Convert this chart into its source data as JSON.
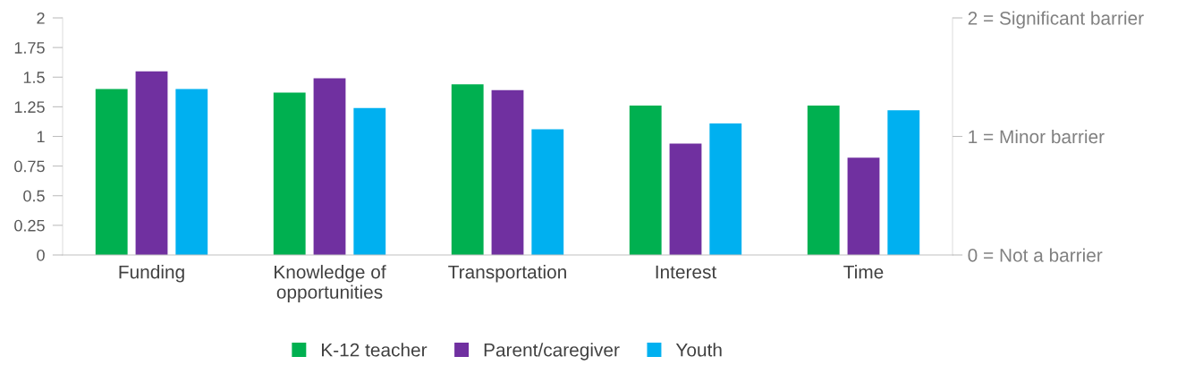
{
  "chart_data": {
    "type": "bar",
    "categories": [
      "Funding",
      "Knowledge of\nopportunities",
      "Transportation",
      "Interest",
      "Time"
    ],
    "series": [
      {
        "name": "K-12 teacher",
        "color": "#00b050",
        "values": [
          1.4,
          1.37,
          1.44,
          1.26,
          1.26
        ]
      },
      {
        "name": "Parent/caregiver",
        "color": "#7030a0",
        "values": [
          1.55,
          1.49,
          1.39,
          0.94,
          0.82
        ]
      },
      {
        "name": "Youth",
        "color": "#00b0f0",
        "values": [
          1.4,
          1.24,
          1.06,
          1.11,
          1.22
        ]
      }
    ],
    "ylim": [
      0,
      2
    ],
    "yticks": [
      0,
      0.25,
      0.5,
      0.75,
      1,
      1.25,
      1.5,
      1.75,
      2
    ],
    "y2lim": [
      0,
      2
    ],
    "y2ticks": [
      {
        "value": 0,
        "label": "0 = Not a barrier"
      },
      {
        "value": 1,
        "label": "1 = Minor barrier"
      },
      {
        "value": 2,
        "label": "2 = Significant barrier"
      }
    ],
    "grid": false,
    "legend": "bottom"
  }
}
